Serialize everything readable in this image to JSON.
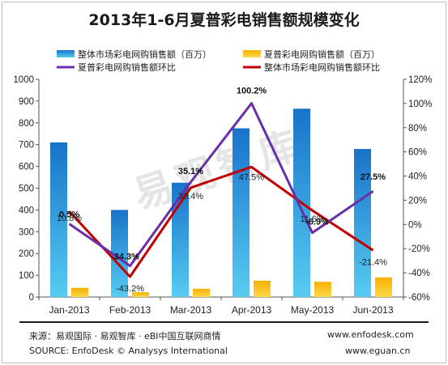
{
  "title": "2013年1-6月夏普彩电销售额规模变化",
  "watermark": "易观智库",
  "footer": {
    "source_cn": "来源：易观国际 · 易观智库 · eBI中国互联网商情",
    "source_en": "SOURCE: EnfoDesk © Analysys International",
    "url1": "www.enfodesk.com",
    "url2": "www.eguan.cn"
  },
  "chart_data": {
    "type": "bar",
    "categories": [
      "Jan-2013",
      "Feb-2013",
      "Mar-2013",
      "Apr-2013",
      "May-2013",
      "Jun-2013"
    ],
    "series": [
      {
        "name": "整体市场彩电网购销售额（百万）",
        "kind": "bar",
        "axis": "left",
        "color": "#1c87d6",
        "values": [
          710,
          400,
          525,
          775,
          865,
          680
        ]
      },
      {
        "name": "夏普彩电网购销售额（百万）",
        "kind": "bar",
        "axis": "left",
        "color": "#ffc000",
        "values": [
          42,
          22,
          38,
          75,
          70,
          90
        ]
      },
      {
        "name": "夏普彩电网购销售额环比",
        "kind": "line",
        "axis": "right",
        "color": "#6a2fa8",
        "values": [
          0.5,
          -34.3,
          35.1,
          100.2,
          -6.9,
          27.5
        ],
        "labels": [
          "0.5%",
          "-34.3%",
          "35.1%",
          "100.2%",
          "-6.9%",
          "27.5%"
        ]
      },
      {
        "name": "整体市场彩电网购销售额环比",
        "kind": "line",
        "axis": "right",
        "color": "#c00000",
        "values": [
          10.8,
          -43.2,
          30.4,
          47.5,
          11.6,
          -21.4
        ],
        "labels": [
          "10.8%",
          "-43.2%",
          "30.4%",
          "47.5%",
          "11.6%",
          "-21.4%"
        ]
      }
    ],
    "y_left": {
      "min": 0,
      "max": 1000,
      "ticks": [
        "0",
        "100",
        "200",
        "300",
        "400",
        "500",
        "600",
        "700",
        "800",
        "900",
        "1000"
      ]
    },
    "y_right": {
      "min": -60,
      "max": 120,
      "ticks": [
        "-60%",
        "-40%",
        "-20%",
        "0%",
        "20%",
        "40%",
        "60%",
        "80%",
        "100%",
        "120%"
      ]
    },
    "grid": false,
    "legend": "top"
  }
}
